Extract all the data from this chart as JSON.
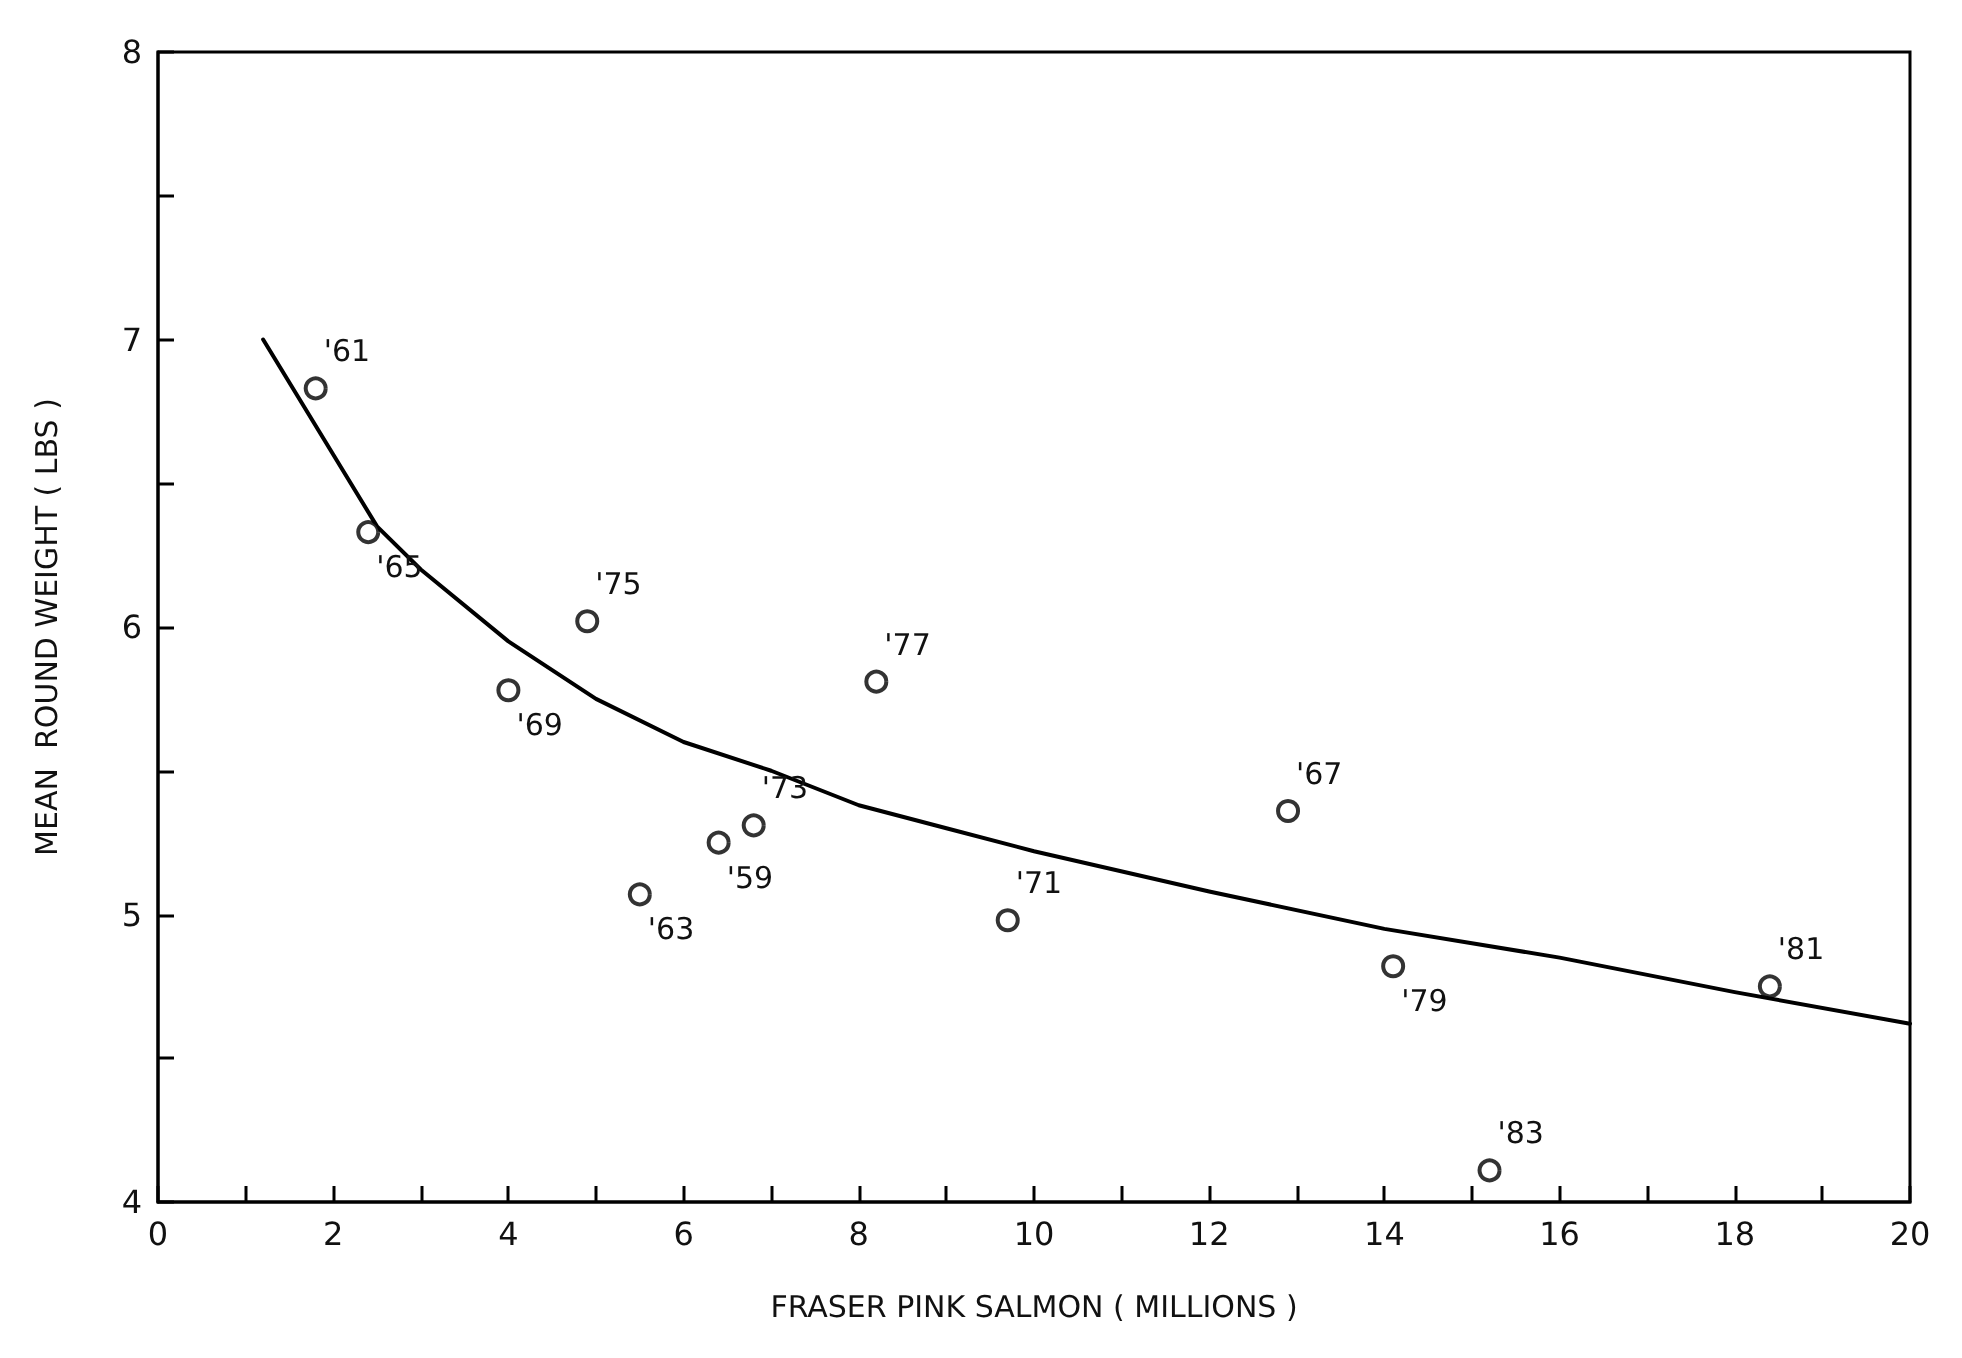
{
  "chart_data": {
    "type": "scatter",
    "xlabel": "FRASER PINK SALMON ( MILLIONS )",
    "ylabel": "MEAN  ROUND WEIGHT ( LBS )",
    "xlim": [
      0,
      20
    ],
    "ylim": [
      4,
      8
    ],
    "xticks": [
      0,
      {
        "value": 1,
        "label": null
      },
      2,
      {
        "value": 3,
        "label": null
      },
      4,
      {
        "value": 5,
        "label": null
      },
      6,
      {
        "value": 7,
        "label": null
      },
      8,
      {
        "value": 9,
        "label": null
      },
      10,
      {
        "value": 11,
        "label": null
      },
      12,
      {
        "value": 13,
        "label": null
      },
      14,
      {
        "value": 15,
        "label": null
      },
      16,
      {
        "value": 17,
        "label": null
      },
      18,
      {
        "value": 19,
        "label": null
      },
      20
    ],
    "yticks": [
      4,
      {
        "value": 4.5,
        "label": null
      },
      5,
      {
        "value": 5.5,
        "label": null
      },
      6,
      {
        "value": 6.5,
        "label": null
      },
      7,
      {
        "value": 7.5,
        "label": null
      },
      8
    ],
    "grid": false,
    "marker": "circle",
    "series": [
      {
        "type": "scatter",
        "color": "#000000",
        "x": [
          1.8,
          2.4,
          4.9,
          4.0,
          8.2,
          6.8,
          6.4,
          5.5,
          9.7,
          12.9,
          14.1,
          18.4,
          15.2
        ],
        "values": [
          6.83,
          6.33,
          6.02,
          5.78,
          5.81,
          5.31,
          5.25,
          5.07,
          4.98,
          5.36,
          4.82,
          4.75,
          4.11
        ]
      },
      {
        "type": "line",
        "color": "#000000",
        "line_style": "solid",
        "marker": "none",
        "x": [
          1.2,
          2,
          2.5,
          3,
          4,
          5,
          6,
          7,
          8,
          9,
          10,
          12,
          14,
          16,
          18,
          20
        ],
        "values": [
          7.0,
          6.6,
          6.35,
          6.2,
          5.95,
          5.75,
          5.6,
          5.5,
          5.38,
          5.3,
          5.22,
          5.08,
          4.95,
          4.85,
          4.73,
          4.62
        ]
      }
    ],
    "annotations": [
      {
        "text": "'61",
        "x": 1.8,
        "y": 6.83
      },
      {
        "text": "'65",
        "x": 2.4,
        "y": 6.33
      },
      {
        "text": "'75",
        "x": 4.9,
        "y": 6.02
      },
      {
        "text": "'69",
        "x": 4.0,
        "y": 5.78
      },
      {
        "text": "'77",
        "x": 8.2,
        "y": 5.81
      },
      {
        "text": "'73",
        "x": 6.8,
        "y": 5.31
      },
      {
        "text": "'59",
        "x": 6.4,
        "y": 5.25
      },
      {
        "text": "'63",
        "x": 5.5,
        "y": 5.07
      },
      {
        "text": "'71",
        "x": 9.7,
        "y": 4.98
      },
      {
        "text": "'67",
        "x": 12.9,
        "y": 5.36
      },
      {
        "text": "'79",
        "x": 14.1,
        "y": 4.82
      },
      {
        "text": "'81",
        "x": 18.4,
        "y": 4.75
      },
      {
        "text": "'83",
        "x": 15.2,
        "y": 4.11
      }
    ]
  }
}
